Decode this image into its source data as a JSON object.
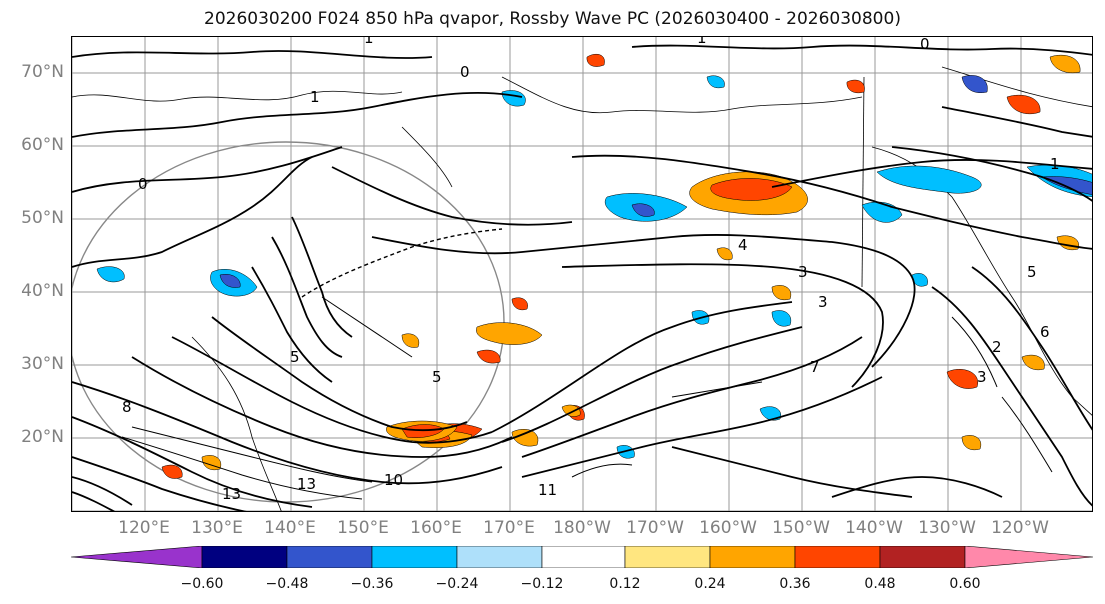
{
  "title": "2026030200 F024 850 hPa qvapor, Rossby Wave PC (2026030400 - 2026030800)",
  "map": {
    "lat_labels": [
      "70°N",
      "60°N",
      "50°N",
      "40°N",
      "30°N",
      "20°N"
    ],
    "lon_labels": [
      "120°E",
      "130°E",
      "140°E",
      "150°E",
      "160°E",
      "170°E",
      "180°W",
      "170°W",
      "160°W",
      "150°W",
      "140°W",
      "130°W",
      "120°W"
    ],
    "label_color": "#808080",
    "grid_color": "#888888",
    "contour_color": "#000000",
    "contour_labels": [
      "0",
      "0",
      "0",
      "1",
      "1",
      "1",
      "1",
      "2",
      "3",
      "3",
      "3",
      "4",
      "5",
      "5",
      "5",
      "6",
      "7",
      "8",
      "10",
      "11",
      "13",
      "13"
    ]
  },
  "colorbar": {
    "colors": [
      "#9933cc",
      "#000080",
      "#3355cc",
      "#00bfff",
      "#aee0fa",
      "#ffffff",
      "#ffe680",
      "#ffa500",
      "#ff4500",
      "#b22222",
      "#ff88aa"
    ],
    "ticks": [
      "−0.60",
      "−0.48",
      "−0.36",
      "−0.24",
      "−0.12",
      "0.12",
      "0.24",
      "0.36",
      "0.48",
      "0.60"
    ]
  }
}
